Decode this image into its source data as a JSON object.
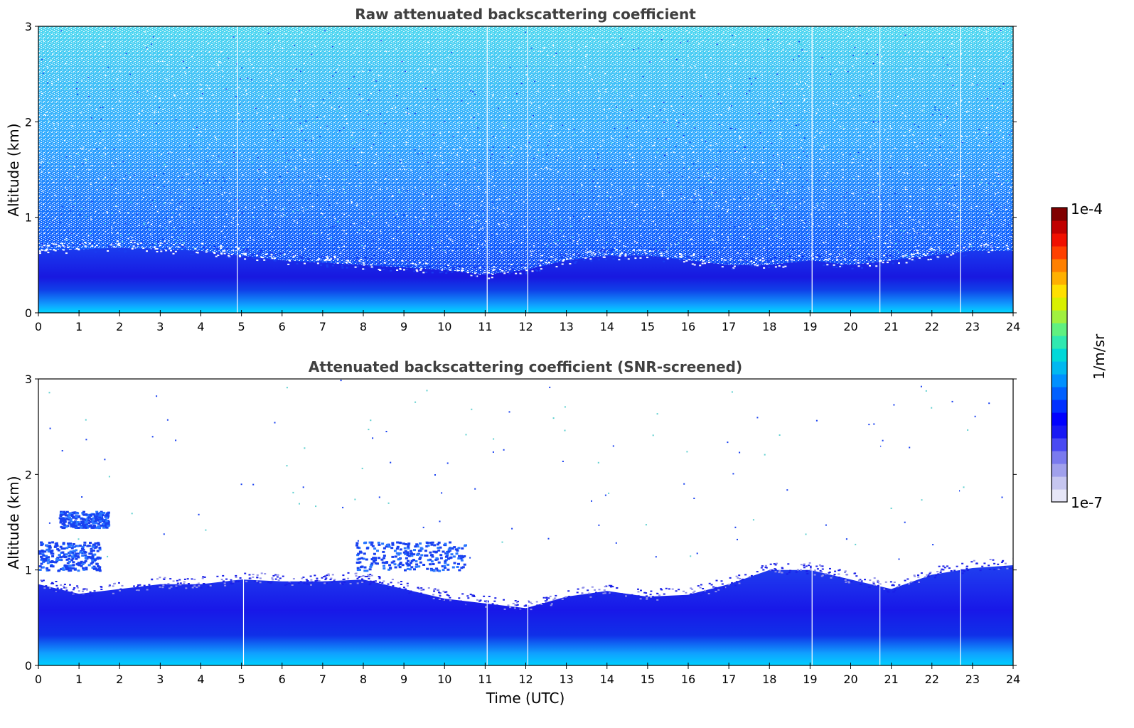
{
  "chart_data": [
    {
      "type": "heatmap",
      "title": "Raw attenuated backscattering coefficient",
      "xlabel": "",
      "ylabel": "Altitude (km)",
      "xlim": [
        0,
        24
      ],
      "ylim": [
        0,
        3
      ],
      "x_ticks": [
        "0",
        "1",
        "2",
        "3",
        "4",
        "5",
        "6",
        "7",
        "8",
        "9",
        "10",
        "11",
        "12",
        "13",
        "14",
        "15",
        "16",
        "17",
        "18",
        "19",
        "20",
        "21",
        "22",
        "23",
        "24"
      ],
      "y_ticks": [
        "0",
        "1",
        "2",
        "3"
      ],
      "color_scale": "log",
      "data_gaps_utc": [
        4.9,
        11.05,
        12.05,
        19.05,
        20.72,
        22.7
      ],
      "layer_top_km": {
        "time_utc": [
          0,
          2,
          4,
          6,
          8,
          10,
          11,
          12,
          13,
          14,
          15,
          16,
          17,
          18,
          19,
          20,
          21,
          22,
          23,
          24
        ],
        "altitude": [
          0.65,
          0.68,
          0.65,
          0.55,
          0.5,
          0.45,
          0.4,
          0.45,
          0.55,
          0.6,
          0.6,
          0.55,
          0.5,
          0.5,
          0.55,
          0.5,
          0.55,
          0.6,
          0.65,
          0.65
        ]
      },
      "noise_level": "high"
    },
    {
      "type": "heatmap",
      "title": "Attenuated backscattering coefficient (SNR-screened)",
      "xlabel": "Time (UTC)",
      "ylabel": "Altitude (km)",
      "xlim": [
        0,
        24
      ],
      "ylim": [
        0,
        3
      ],
      "x_ticks": [
        "0",
        "1",
        "2",
        "3",
        "4",
        "5",
        "6",
        "7",
        "8",
        "9",
        "10",
        "11",
        "12",
        "13",
        "14",
        "15",
        "16",
        "17",
        "18",
        "19",
        "20",
        "21",
        "22",
        "23",
        "24"
      ],
      "y_ticks": [
        "0",
        "1",
        "2",
        "3"
      ],
      "color_scale": "log",
      "data_gaps_utc": [
        5.05,
        11.05,
        12.05,
        19.05,
        20.72,
        22.7
      ],
      "layer_top_km": {
        "time_utc": [
          0,
          1,
          2,
          3,
          4,
          5,
          6,
          7,
          8,
          9,
          10,
          11,
          12,
          13,
          14,
          15,
          16,
          17,
          18,
          19,
          20,
          21,
          22,
          23,
          24
        ],
        "altitude": [
          0.85,
          0.75,
          0.8,
          0.85,
          0.85,
          0.9,
          0.88,
          0.88,
          0.9,
          0.8,
          0.7,
          0.65,
          0.6,
          0.72,
          0.78,
          0.72,
          0.74,
          0.85,
          1.0,
          1.0,
          0.9,
          0.8,
          0.95,
          1.02,
          1.05
        ]
      },
      "cloud_patches": [
        {
          "t0": 0.0,
          "t1": 1.5,
          "alt0": 1.0,
          "alt1": 1.3
        },
        {
          "t0": 7.8,
          "t1": 10.5,
          "alt0": 1.0,
          "alt1": 1.3
        },
        {
          "t0": 0.5,
          "t1": 1.7,
          "alt0": 1.45,
          "alt1": 1.62
        }
      ],
      "noise_level": "screened"
    }
  ],
  "colorbar": {
    "label": "1/m/sr",
    "max_label": "1e-4",
    "min_label": "1e-7",
    "colors": [
      "#e6e6f7",
      "#c6c6f0",
      "#a0a0ec",
      "#7a7aee",
      "#4a4af2",
      "#1818f4",
      "#0000ff",
      "#0030ff",
      "#0060ff",
      "#0090ff",
      "#00b8f0",
      "#00d8d8",
      "#30e8b0",
      "#60f080",
      "#a0f040",
      "#d8f000",
      "#ffe000",
      "#ffb000",
      "#ff8000",
      "#ff4000",
      "#f01000",
      "#c00000",
      "#800000"
    ]
  }
}
